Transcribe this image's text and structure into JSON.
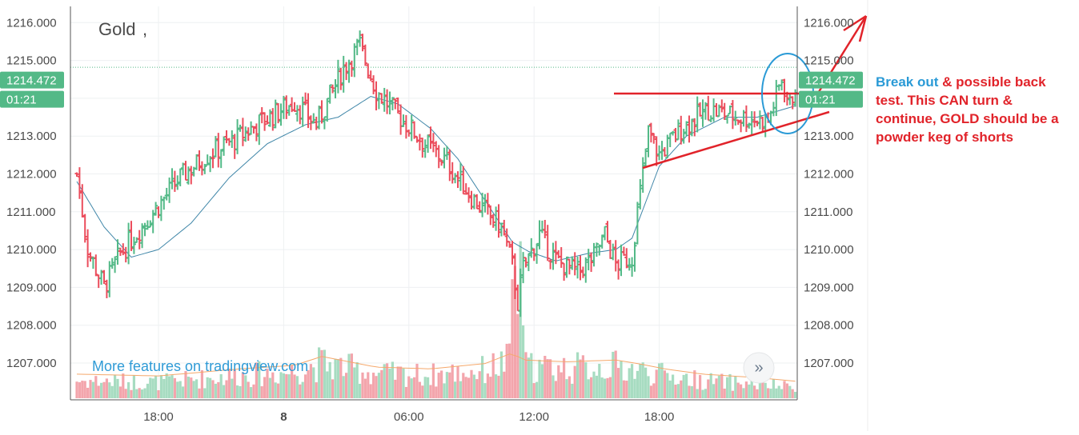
{
  "chart_data": {
    "type": "ohlc",
    "title": "Gold",
    "watermark": "More features on tradingview.com",
    "price_ticks": [
      "1207.000",
      "1208.000",
      "1209.000",
      "1210.000",
      "1211.000",
      "1212.000",
      "1213.000",
      "1214.000",
      "1215.000",
      "1216.000"
    ],
    "price_tick_values": [
      1207,
      1208,
      1209,
      1210,
      1211,
      1212,
      1213,
      1214,
      1215,
      1216
    ],
    "ylim": [
      1206.0,
      1216.45
    ],
    "time_ticks": [
      {
        "label": "18:00",
        "bar": 30,
        "bold": false
      },
      {
        "label": "8",
        "bar": 76,
        "bold": true
      },
      {
        "label": "06:00",
        "bar": 122,
        "bold": false
      },
      {
        "label": "12:00",
        "bar": 168,
        "bold": false
      },
      {
        "label": "18:00",
        "bar": 214,
        "bold": false
      }
    ],
    "last_price": "1214.472",
    "last_price_value": 1214.472,
    "countdown": "01:21",
    "price_line_value": 1214.82,
    "colors": {
      "up": "#53b987",
      "down": "#eb4d5c",
      "vol_up": "#a7dcc1",
      "vol_down": "#f3a5ac",
      "ma": "#3f86a8",
      "vol_ma": "#f5a86b",
      "annotation": "#e1232a",
      "circle": "#2a9ad6"
    },
    "anchors": [
      [
        0,
        1212.0
      ],
      [
        4,
        1210.0
      ],
      [
        10,
        1209.0
      ],
      [
        16,
        1209.9
      ],
      [
        26,
        1210.8
      ],
      [
        38,
        1211.9
      ],
      [
        48,
        1212.5
      ],
      [
        58,
        1212.9
      ],
      [
        66,
        1213.3
      ],
      [
        80,
        1213.9
      ],
      [
        88,
        1213.3
      ],
      [
        98,
        1214.8
      ],
      [
        104,
        1215.4
      ],
      [
        110,
        1214.2
      ],
      [
        120,
        1213.4
      ],
      [
        128,
        1212.8
      ],
      [
        136,
        1212.3
      ],
      [
        146,
        1211.3
      ],
      [
        156,
        1210.6
      ],
      [
        160,
        1209.6
      ],
      [
        162,
        1208.6
      ],
      [
        164,
        1209.5
      ],
      [
        170,
        1210.4
      ],
      [
        176,
        1209.7
      ],
      [
        184,
        1209.4
      ],
      [
        190,
        1209.8
      ],
      [
        194,
        1210.4
      ],
      [
        198,
        1209.6
      ],
      [
        204,
        1209.8
      ],
      [
        206,
        1211.0
      ],
      [
        210,
        1213.1
      ],
      [
        214,
        1212.5
      ],
      [
        222,
        1213.2
      ],
      [
        232,
        1213.7
      ],
      [
        244,
        1213.5
      ],
      [
        254,
        1213.4
      ],
      [
        259,
        1214.5
      ],
      [
        262,
        1213.8
      ],
      [
        264,
        1214.35
      ]
    ],
    "volume_anchors": [
      [
        0,
        0.1
      ],
      [
        30,
        0.09
      ],
      [
        60,
        0.13
      ],
      [
        80,
        0.15
      ],
      [
        90,
        0.2
      ],
      [
        110,
        0.14
      ],
      [
        130,
        0.13
      ],
      [
        150,
        0.16
      ],
      [
        160,
        0.22
      ],
      [
        164,
        0.18
      ],
      [
        180,
        0.17
      ],
      [
        198,
        0.18
      ],
      [
        206,
        0.16
      ],
      [
        216,
        0.13
      ],
      [
        230,
        0.1
      ],
      [
        250,
        0.08
      ],
      [
        264,
        0.06
      ]
    ],
    "ma_anchors": [
      [
        0,
        1211.8
      ],
      [
        10,
        1210.6
      ],
      [
        20,
        1209.8
      ],
      [
        30,
        1210.0
      ],
      [
        42,
        1210.7
      ],
      [
        56,
        1211.9
      ],
      [
        70,
        1212.8
      ],
      [
        84,
        1213.3
      ],
      [
        96,
        1213.5
      ],
      [
        108,
        1214.05
      ],
      [
        118,
        1213.85
      ],
      [
        130,
        1213.2
      ],
      [
        140,
        1212.4
      ],
      [
        150,
        1211.3
      ],
      [
        160,
        1210.2
      ],
      [
        166,
        1209.95
      ],
      [
        176,
        1209.7
      ],
      [
        188,
        1209.9
      ],
      [
        198,
        1210.0
      ],
      [
        204,
        1210.3
      ],
      [
        214,
        1212.2
      ],
      [
        224,
        1213.0
      ],
      [
        238,
        1213.5
      ],
      [
        250,
        1213.5
      ],
      [
        264,
        1213.8
      ]
    ]
  },
  "annotation": {
    "break_out": "Break out",
    "rest": "& possible back test.  This CAN turn & continue, GOLD should be a powder keg of shorts"
  }
}
